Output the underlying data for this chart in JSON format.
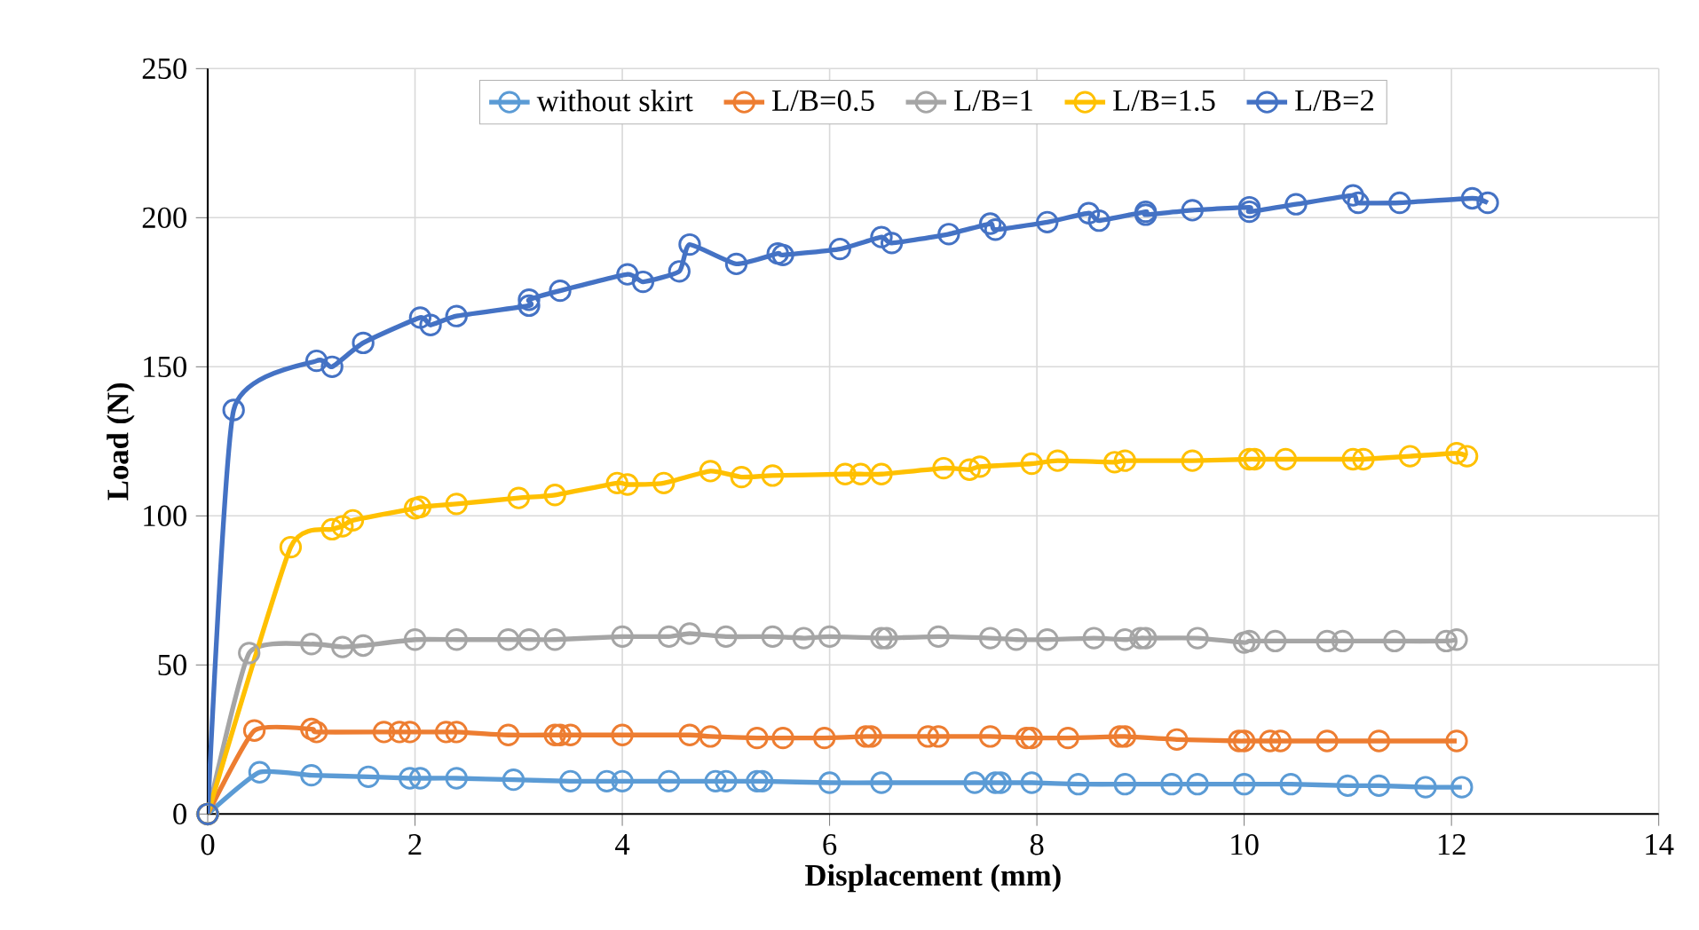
{
  "chart_data": {
    "type": "line",
    "xlabel": "Displacement (mm)",
    "ylabel": "Load (N)",
    "xlim": [
      0,
      14
    ],
    "ylim": [
      0,
      250
    ],
    "xticks": [
      0,
      2,
      4,
      6,
      8,
      10,
      12,
      14
    ],
    "yticks": [
      0,
      50,
      100,
      150,
      200,
      250
    ],
    "grid": true,
    "legend": "top",
    "marker": "circle",
    "line_style": "solid",
    "series": [
      {
        "name": "without skirt",
        "color": "#5b9bd5",
        "x": [
          0,
          0.5,
          1,
          1.55,
          1.95,
          2.05,
          2.4,
          2.95,
          3.5,
          3.85,
          4,
          4.45,
          4.9,
          5,
          5.3,
          5.35,
          6,
          6.5,
          7.4,
          7.6,
          7.65,
          7.95,
          8.4,
          8.85,
          9.3,
          9.55,
          10,
          10.45,
          11,
          11.3,
          11.75,
          12.1
        ],
        "values": [
          0,
          14,
          13,
          12.5,
          12,
          12,
          12,
          11.5,
          11,
          11,
          11,
          11,
          11,
          11,
          11,
          11,
          10.5,
          10.5,
          10.5,
          10.5,
          10.5,
          10.5,
          10,
          10,
          10,
          10,
          10,
          10,
          9.5,
          9.5,
          9,
          9
        ]
      },
      {
        "name": "L/B=0.5",
        "color": "#ed7d31",
        "x": [
          0,
          0.45,
          1,
          1.05,
          1.7,
          1.85,
          1.95,
          2.3,
          2.4,
          2.9,
          3.35,
          3.4,
          3.5,
          4,
          4.65,
          4.85,
          5.3,
          5.55,
          5.95,
          6.35,
          6.4,
          6.95,
          7.05,
          7.55,
          7.9,
          7.95,
          8.3,
          8.8,
          8.85,
          9.35,
          9.95,
          10,
          10.25,
          10.35,
          10.8,
          11.3,
          12.05
        ],
        "values": [
          0,
          28,
          28.5,
          27.5,
          27.5,
          27.5,
          27.5,
          27.5,
          27.5,
          26.5,
          26.5,
          26.5,
          26.5,
          26.5,
          26.5,
          26,
          25.5,
          25.5,
          25.5,
          26,
          26,
          26,
          26,
          26,
          25.5,
          25.5,
          25.5,
          26,
          26,
          25,
          24.5,
          24.5,
          24.5,
          24.5,
          24.5,
          24.5,
          24.5
        ]
      },
      {
        "name": "L/B=1",
        "color": "#a5a5a5",
        "x": [
          0,
          0.4,
          1,
          1.3,
          1.5,
          2,
          2.4,
          2.9,
          3.1,
          3.35,
          4,
          4.45,
          4.65,
          5,
          5.45,
          5.75,
          6,
          6.5,
          6.55,
          7.05,
          7.55,
          7.8,
          8.1,
          8.55,
          8.85,
          9,
          9.05,
          9.55,
          10,
          10.05,
          10.3,
          10.8,
          10.95,
          11.45,
          11.95,
          12.05
        ],
        "values": [
          0,
          54,
          57,
          56,
          56.5,
          58.5,
          58.5,
          58.5,
          58.5,
          58.5,
          59.5,
          59.5,
          60.5,
          59.5,
          59.5,
          59,
          59.5,
          59,
          59,
          59.5,
          59,
          58.5,
          58.5,
          59,
          58.5,
          59,
          59,
          59,
          57.5,
          58,
          58,
          58,
          58,
          58,
          58,
          58.5
        ]
      },
      {
        "name": "L/B=1.5",
        "color": "#ffc000",
        "x": [
          0,
          0.8,
          1.2,
          1.3,
          1.4,
          2,
          2.05,
          2.4,
          3,
          3.35,
          3.95,
          4.05,
          4.4,
          4.85,
          5.15,
          5.45,
          6.15,
          6.3,
          6.5,
          7.1,
          7.35,
          7.45,
          7.95,
          8.2,
          8.75,
          8.85,
          9.5,
          10.05,
          10.1,
          10.4,
          11.05,
          11.15,
          11.6,
          12.05,
          12.15
        ],
        "values": [
          0,
          89.5,
          95.5,
          96.5,
          98.5,
          102.5,
          103,
          104,
          106,
          107,
          111,
          110.5,
          111,
          115,
          113,
          113.5,
          114,
          114,
          114,
          116,
          115.5,
          116.5,
          117.5,
          118.5,
          118,
          118.5,
          118.5,
          119,
          119,
          119,
          119,
          119,
          120,
          121,
          120
        ]
      },
      {
        "name": "L/B=2",
        "color": "#4472c4",
        "x": [
          0,
          0.25,
          1.05,
          1.2,
          1.5,
          2.05,
          2.15,
          2.4,
          3.1,
          3.1,
          3.4,
          4.05,
          4.2,
          4.55,
          4.65,
          5.1,
          5.5,
          5.55,
          6.1,
          6.5,
          6.6,
          7.15,
          7.55,
          7.6,
          8.1,
          8.5,
          8.6,
          9.05,
          9.05,
          9.5,
          10.05,
          10.05,
          10.5,
          11.05,
          11.1,
          11.5,
          12.2,
          12.35
        ],
        "values": [
          0,
          135.5,
          152,
          150,
          158,
          166.5,
          164,
          167,
          170.5,
          172.5,
          175.5,
          181,
          178.5,
          182,
          191,
          184.5,
          188,
          187.5,
          189.5,
          193.5,
          191.5,
          194.5,
          198,
          196,
          198.5,
          201.5,
          199,
          202,
          201,
          202.5,
          203.5,
          202,
          204.5,
          207.5,
          205,
          205,
          206.5,
          205
        ]
      }
    ]
  }
}
